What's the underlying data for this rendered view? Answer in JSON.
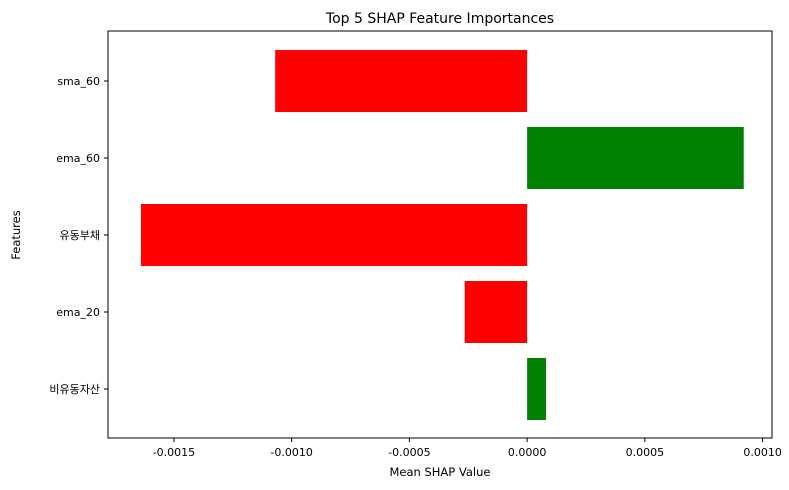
{
  "chart_data": {
    "type": "bar",
    "orientation": "horizontal",
    "title": "Top 5 SHAP Feature Importances",
    "xlabel": "Mean SHAP Value",
    "ylabel": "Features",
    "categories": [
      "sma_60",
      "ema_60",
      "유동부채",
      "ema_20",
      "비유동자산"
    ],
    "values": [
      -0.00107,
      0.00092,
      -0.00164,
      -0.000265,
      8e-05
    ],
    "xlim": [
      -0.00178,
      0.00104
    ],
    "xticks": [
      -0.0015,
      -0.001,
      -0.0005,
      0.0,
      0.0005,
      0.001
    ],
    "xtick_labels": [
      "-0.0015",
      "-0.0010",
      "-0.0005",
      "0.0000",
      "0.0005",
      "0.0010"
    ],
    "colors": {
      "positive": "#008000",
      "negative": "#ff0000"
    },
    "grid": false,
    "legend": "none"
  }
}
